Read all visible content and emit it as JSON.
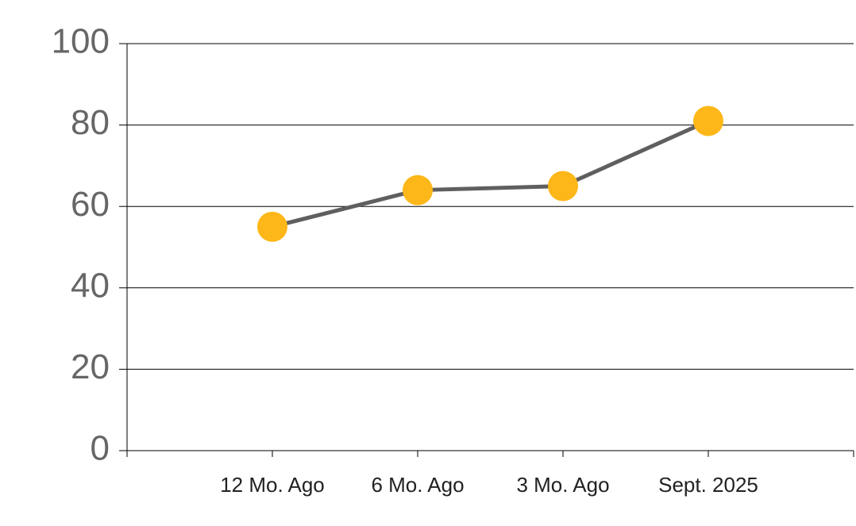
{
  "chart_data": {
    "type": "line",
    "categories": [
      "12 Mo. Ago",
      "6 Mo. Ago",
      "3 Mo. Ago",
      "Sept. 2025"
    ],
    "series": [
      {
        "values": [
          55,
          64,
          65,
          81
        ],
        "color": "#5f5f5f",
        "marker_color": "#fdb718"
      }
    ],
    "ylim": [
      0,
      100
    ],
    "yticks": [
      0,
      20,
      40,
      60,
      80,
      100
    ],
    "grid": true
  }
}
